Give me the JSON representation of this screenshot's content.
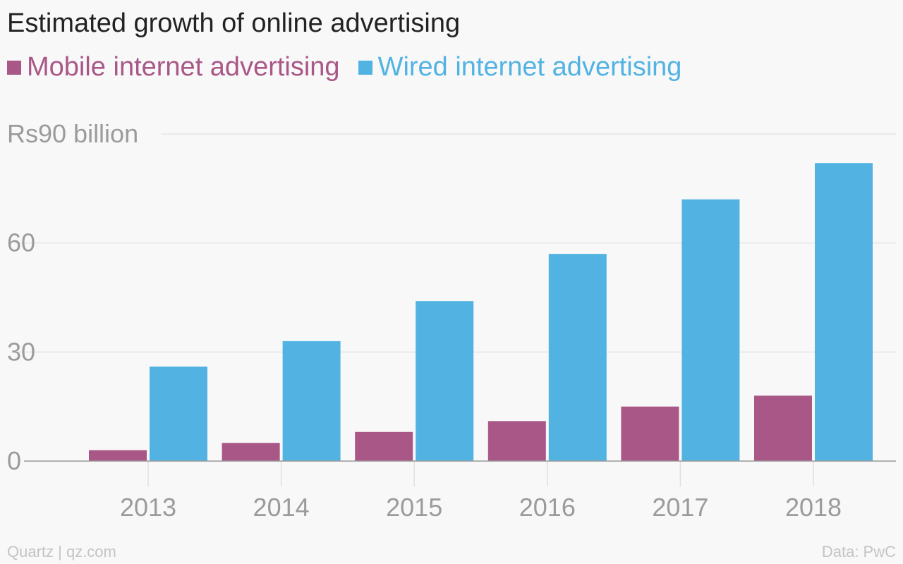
{
  "title": "Estimated growth of online advertising",
  "footer": {
    "source_left": "Quartz | qz.com",
    "source_right": "Data: PwC"
  },
  "colors": {
    "mobile": "#a95787",
    "wired": "#52b3e3",
    "grid": "#e6e6e6",
    "axis": "#999999",
    "tick_text": "#9b9b9b"
  },
  "chart_data": {
    "type": "bar",
    "categories": [
      "2013",
      "2014",
      "2015",
      "2016",
      "2017",
      "2018"
    ],
    "series": [
      {
        "name": "Mobile internet advertising",
        "values": [
          3,
          5,
          8,
          11,
          15,
          18
        ]
      },
      {
        "name": "Wired internet advertising",
        "values": [
          26,
          33,
          44,
          57,
          72,
          82
        ]
      }
    ],
    "ylim": [
      0,
      90
    ],
    "yticks": [
      0,
      30,
      60,
      90
    ],
    "ytick_labels": [
      "0",
      "30",
      "60",
      "Rs90 billion"
    ],
    "grid": true,
    "legend_position": "top-left"
  }
}
